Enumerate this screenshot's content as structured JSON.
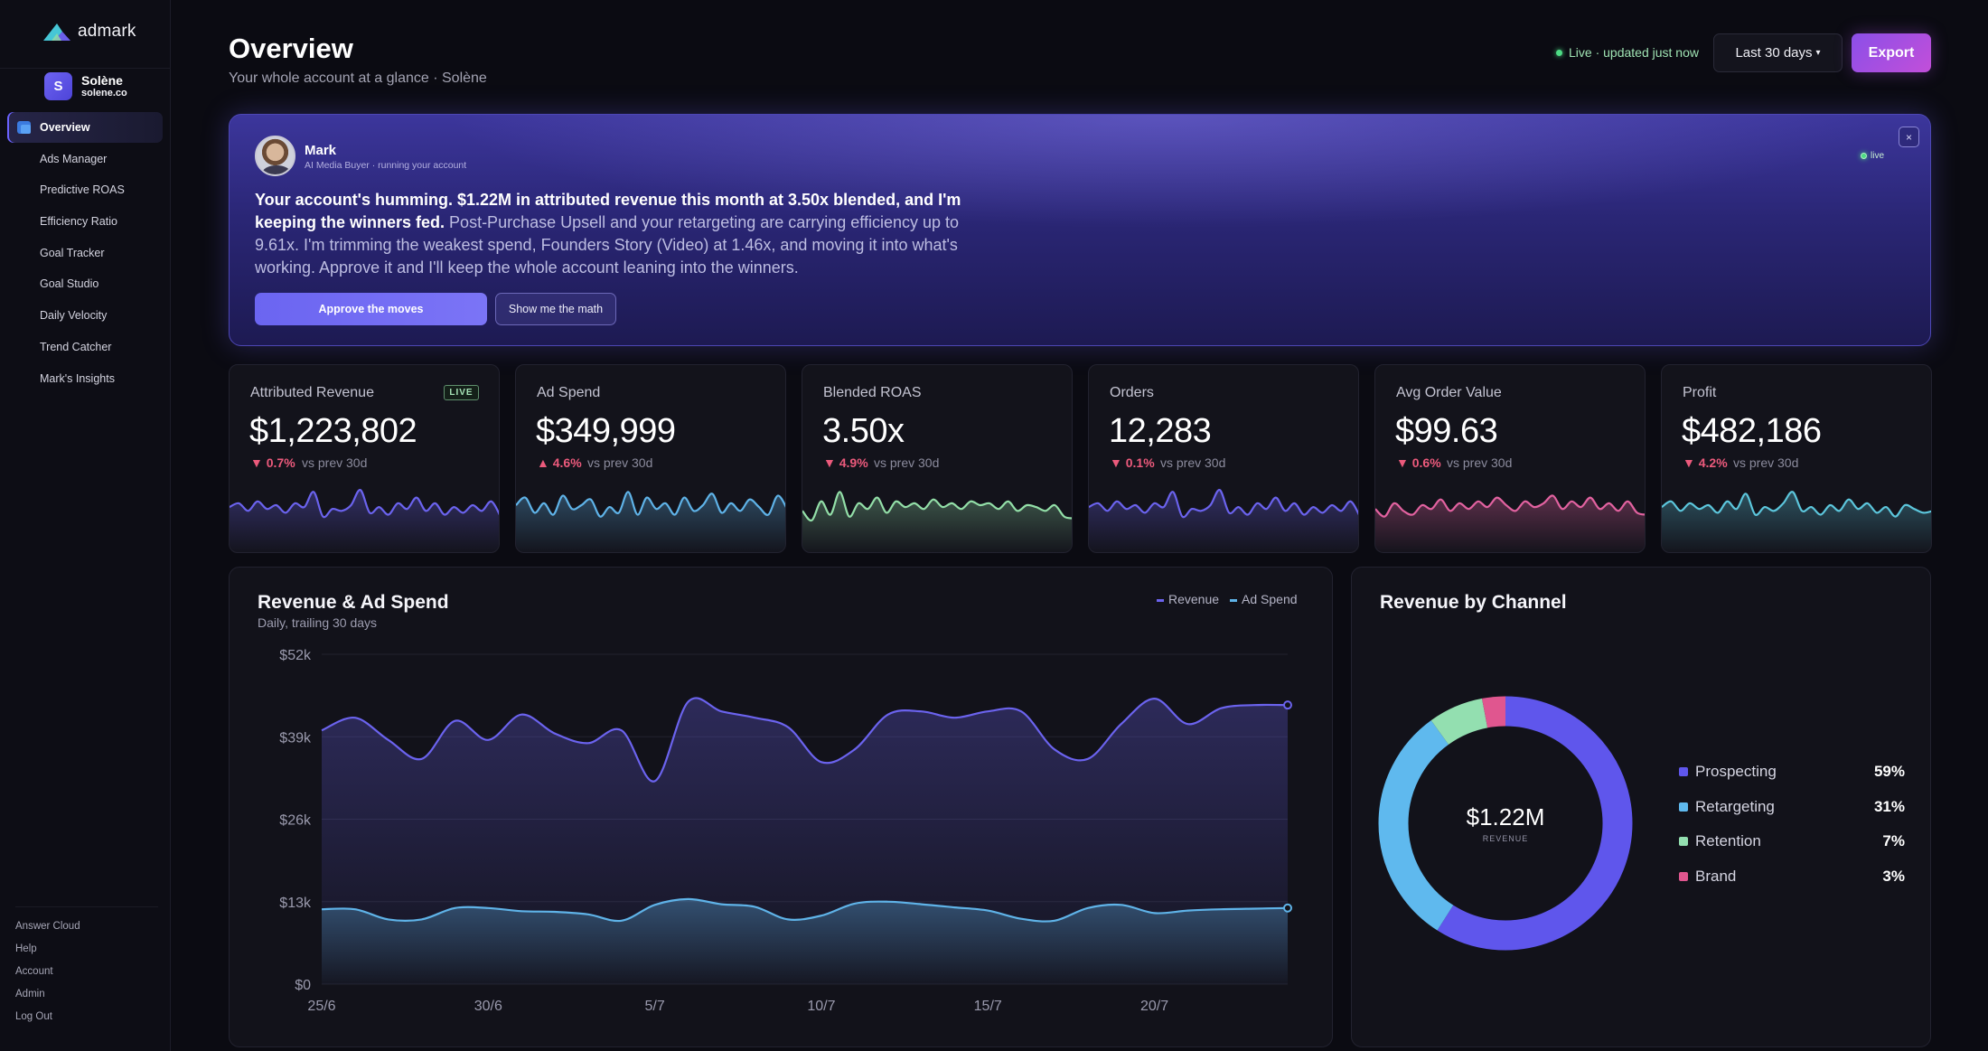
{
  "sidebar": {
    "logo_text": "admark",
    "user": {
      "initial": "S",
      "name": "Solène",
      "domain": "solene.co"
    },
    "nav": [
      {
        "label": "Overview",
        "active": true
      },
      {
        "label": "Ads Manager"
      },
      {
        "label": "Predictive ROAS"
      },
      {
        "label": "Efficiency Ratio"
      },
      {
        "label": "Goal Tracker"
      },
      {
        "label": "Goal Studio"
      },
      {
        "label": "Daily Velocity"
      },
      {
        "label": "Trend Catcher"
      },
      {
        "label": "Mark's Insights"
      }
    ],
    "bottom": [
      "Answer Cloud",
      "Help",
      "Account",
      "Admin",
      "Log Out"
    ]
  },
  "header": {
    "title": "Overview",
    "subtitle": "Your whole account at a glance · Solène",
    "live_status": "Live · updated just now",
    "range_label": "Last 30 days",
    "range_caret": "▾",
    "export_label": "Export"
  },
  "hero": {
    "name": "Mark",
    "role": "AI Media Buyer · running your account",
    "live_label": "live",
    "close_glyph": "×",
    "strong_text": "Your account's humming. $1.22M in attributed revenue this month at 3.50x blended, and I'm keeping the winners fed.",
    "rest_text": " Post-Purchase Upsell and your retargeting are carrying efficiency up to 9.61x. I'm trimming the weakest spend, Founders Story (Video) at 1.46x, and moving it into what's working. Approve it and I'll keep the whole account leaning into the winners.",
    "approve_label": "Approve the moves",
    "math_label": "Show me the math"
  },
  "kpis": [
    {
      "label": "Attributed Revenue",
      "value": "$1,223,802",
      "arrow": "▼",
      "delta": "0.7%",
      "vs": "vs prev 30d",
      "live_badge": "LIVE",
      "color": "#6b63ee"
    },
    {
      "label": "Ad Spend",
      "value": "$349,999",
      "arrow": "▲",
      "delta": "4.6%",
      "vs": "vs prev 30d",
      "color": "#5fb3e8"
    },
    {
      "label": "Blended ROAS",
      "value": "3.50x",
      "arrow": "▼",
      "delta": "4.9%",
      "vs": "vs prev 30d",
      "color": "#93dfa8"
    },
    {
      "label": "Orders",
      "value": "12,283",
      "arrow": "▼",
      "delta": "0.1%",
      "vs": "vs prev 30d",
      "color": "#6b63ee"
    },
    {
      "label": "Avg Order Value",
      "value": "$99.63",
      "arrow": "▼",
      "delta": "0.6%",
      "vs": "vs prev 30d",
      "color": "#e262a0"
    },
    {
      "label": "Profit",
      "value": "$482,186",
      "arrow": "▼",
      "delta": "4.2%",
      "vs": "vs prev 30d",
      "color": "#5cc6dc"
    }
  ],
  "revenue_panel": {
    "title": "Revenue & Ad Spend",
    "subtitle": "Daily, trailing 30 days",
    "legend": [
      {
        "name": "Revenue",
        "color": "#6b63ee"
      },
      {
        "name": "Ad Spend",
        "color": "#5fb3e8"
      }
    ]
  },
  "channel_panel": {
    "title": "Revenue by Channel",
    "center_value": "$1.22M",
    "center_label": "REVENUE"
  },
  "chart_data": [
    {
      "type": "area",
      "title": "Revenue & Ad Spend",
      "subtitle": "Daily, trailing 30 days",
      "ylim": [
        0,
        52000
      ],
      "yticks": [
        0,
        13000,
        26000,
        39000,
        52000
      ],
      "ytick_labels": [
        "$0",
        "$13k",
        "$26k",
        "$39k",
        "$52k"
      ],
      "x": [
        "25/6",
        "26/6",
        "27/6",
        "28/6",
        "29/6",
        "30/6",
        "1/7",
        "2/7",
        "3/7",
        "4/7",
        "5/7",
        "6/7",
        "7/7",
        "8/7",
        "9/7",
        "10/7",
        "11/7",
        "12/7",
        "13/7",
        "14/7",
        "15/7",
        "16/7",
        "17/7",
        "18/7",
        "19/7",
        "20/7",
        "21/7",
        "22/7",
        "23/7",
        "24/7"
      ],
      "xtick_labels": [
        "25/6",
        "30/6",
        "5/7",
        "10/7",
        "15/7",
        "20/7"
      ],
      "series": [
        {
          "name": "Revenue",
          "color": "#6b63ee",
          "values": [
            40000,
            42000,
            38500,
            35500,
            41500,
            38500,
            42500,
            39500,
            38000,
            40000,
            32000,
            44500,
            43000,
            42000,
            40500,
            35000,
            37000,
            42500,
            43000,
            42000,
            43000,
            43000,
            37000,
            35500,
            41000,
            45000,
            41000,
            43500,
            44000,
            44000
          ]
        },
        {
          "name": "Ad Spend",
          "color": "#5fb3e8",
          "values": [
            11800,
            11800,
            10200,
            10200,
            12000,
            12000,
            11500,
            11400,
            11000,
            10000,
            12500,
            13400,
            12600,
            12200,
            10200,
            10800,
            12700,
            13000,
            12600,
            12100,
            11600,
            10300,
            10000,
            12000,
            12500,
            11200,
            11600,
            11800,
            11900,
            12000
          ]
        }
      ]
    },
    {
      "type": "pie",
      "title": "Revenue by Channel",
      "center_value": "$1.22M",
      "center_label": "REVENUE",
      "categories": [
        "Prospecting",
        "Retargeting",
        "Retention",
        "Brand"
      ],
      "values": [
        59,
        31,
        7,
        3
      ],
      "value_labels": [
        "59%",
        "31%",
        "7%",
        "3%"
      ],
      "colors": [
        "#5f56ec",
        "#5fb9ee",
        "#93dfb0",
        "#e0568f"
      ]
    }
  ],
  "sparklines": [
    [
      0.45,
      0.55,
      0.35,
      0.6,
      0.4,
      0.5,
      0.3,
      0.55,
      0.45,
      0.85,
      0.2,
      0.4,
      0.35,
      0.5,
      0.9,
      0.3,
      0.45,
      0.25,
      0.55,
      0.4,
      0.7,
      0.35,
      0.55,
      0.25,
      0.45,
      0.3,
      0.5,
      0.35,
      0.6,
      0.2
    ],
    [
      0.5,
      0.7,
      0.3,
      0.55,
      0.25,
      0.75,
      0.4,
      0.5,
      0.65,
      0.2,
      0.45,
      0.3,
      0.85,
      0.25,
      0.7,
      0.4,
      0.55,
      0.25,
      0.7,
      0.35,
      0.5,
      0.8,
      0.3,
      0.55,
      0.35,
      0.65,
      0.45,
      0.25,
      0.75,
      0.4
    ],
    [
      0.35,
      0.1,
      0.6,
      0.25,
      0.85,
      0.2,
      0.55,
      0.4,
      0.7,
      0.3,
      0.6,
      0.45,
      0.55,
      0.4,
      0.65,
      0.45,
      0.55,
      0.4,
      0.6,
      0.5,
      0.55,
      0.4,
      0.6,
      0.35,
      0.5,
      0.45,
      0.35,
      0.5,
      0.2,
      0.15
    ],
    [
      0.45,
      0.55,
      0.35,
      0.6,
      0.4,
      0.5,
      0.3,
      0.55,
      0.45,
      0.85,
      0.2,
      0.4,
      0.35,
      0.5,
      0.9,
      0.3,
      0.45,
      0.25,
      0.55,
      0.4,
      0.7,
      0.35,
      0.55,
      0.25,
      0.45,
      0.3,
      0.5,
      0.35,
      0.6,
      0.2
    ],
    [
      0.4,
      0.2,
      0.55,
      0.35,
      0.25,
      0.5,
      0.4,
      0.65,
      0.35,
      0.55,
      0.4,
      0.6,
      0.45,
      0.7,
      0.5,
      0.35,
      0.6,
      0.45,
      0.55,
      0.75,
      0.4,
      0.6,
      0.45,
      0.7,
      0.4,
      0.55,
      0.35,
      0.6,
      0.3,
      0.25
    ],
    [
      0.45,
      0.6,
      0.35,
      0.55,
      0.4,
      0.5,
      0.3,
      0.6,
      0.4,
      0.8,
      0.25,
      0.45,
      0.35,
      0.55,
      0.85,
      0.35,
      0.45,
      0.25,
      0.5,
      0.35,
      0.65,
      0.4,
      0.55,
      0.3,
      0.45,
      0.2,
      0.5,
      0.4,
      0.3,
      0.35
    ]
  ]
}
